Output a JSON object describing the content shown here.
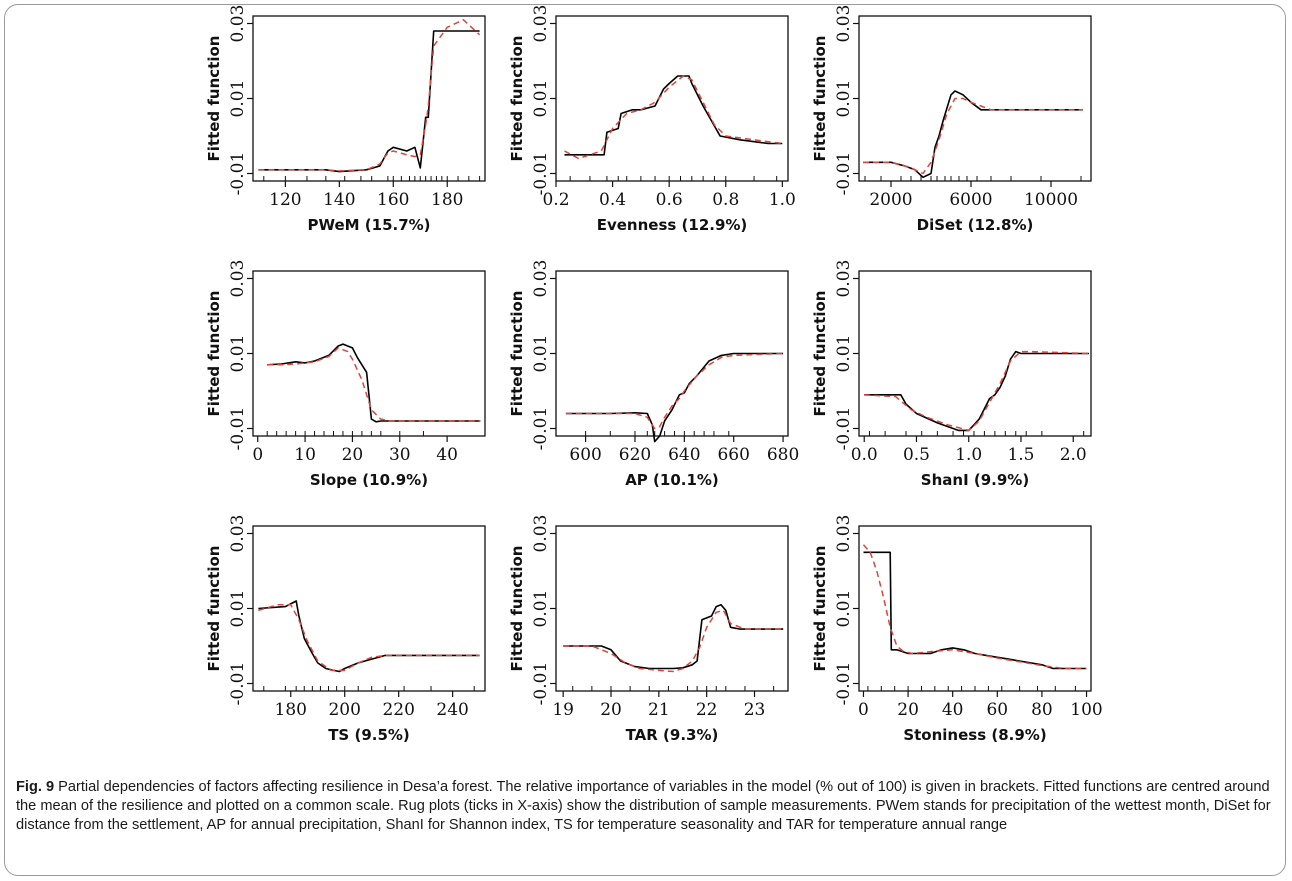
{
  "caption": {
    "label": "Fig. 9",
    "text": "Partial dependencies of factors affecting resilience in Desa’a forest. The relative importance of variables in the model (% out of 100) is given in brackets. Fitted functions are centred around the mean of the resilience and plotted on a common scale. Rug plots (ticks in X-axis) show the distribution of sample measurements. PWem stands for precipitation of the wettest month, DiSet for distance from the settlement, AP for annual precipitation, ShanI for Shannon index, TS for temperature seasonality and TAR for temperature annual range"
  },
  "colors": {
    "fitted": "#000000",
    "smoothed": "#e0443c",
    "axis": "#111111"
  },
  "chart_data": [
    {
      "type": "line",
      "xlabel": "PWeM  (15.7%)",
      "ylabel": "Fitted function",
      "xlim": [
        108,
        194
      ],
      "ylim": [
        -0.012,
        0.032
      ],
      "xticks": [
        120,
        140,
        160,
        180
      ],
      "yticks": [
        -0.01,
        0.01,
        0.03
      ],
      "series": [
        {
          "x": [
            110,
            135,
            140,
            150,
            155,
            158,
            160,
            165,
            168,
            170,
            172,
            173,
            175,
            180,
            192
          ],
          "y": [
            -0.009,
            -0.009,
            -0.0095,
            -0.009,
            -0.008,
            -0.004,
            -0.003,
            -0.004,
            -0.003,
            -0.0085,
            0.005,
            0.005,
            0.028,
            0.028,
            0.028
          ]
        },
        {
          "x": [
            110,
            135,
            140,
            150,
            155,
            158,
            160,
            165,
            168,
            170,
            172,
            173,
            175,
            180,
            186,
            192
          ],
          "y": [
            -0.009,
            -0.009,
            -0.0093,
            -0.009,
            -0.0075,
            -0.0045,
            -0.004,
            -0.005,
            -0.0055,
            -0.005,
            0.003,
            0.008,
            0.024,
            0.029,
            0.031,
            0.027
          ]
        }
      ],
      "rug": [
        112,
        120,
        128,
        135,
        142,
        148,
        152,
        158,
        160,
        163,
        166,
        168,
        170,
        172,
        174,
        176,
        178,
        180,
        184,
        188,
        192
      ]
    },
    {
      "type": "line",
      "xlabel": "Evenness  (12.9%)",
      "ylabel": "Fitted function",
      "xlim": [
        0.2,
        1.02
      ],
      "ylim": [
        -0.012,
        0.032
      ],
      "xticks": [
        0.2,
        0.4,
        0.6,
        0.8,
        1.0
      ],
      "yticks": [
        -0.01,
        0.01,
        0.03
      ],
      "series": [
        {
          "x": [
            0.23,
            0.37,
            0.38,
            0.42,
            0.43,
            0.47,
            0.5,
            0.55,
            0.58,
            0.6,
            0.63,
            0.67,
            0.68,
            0.72,
            0.75,
            0.78,
            0.85,
            0.95,
            1.0
          ],
          "y": [
            -0.005,
            -0.005,
            0.001,
            0.002,
            0.006,
            0.007,
            0.007,
            0.008,
            0.0125,
            0.014,
            0.016,
            0.016,
            0.014,
            0.008,
            0.004,
            0.0,
            -0.001,
            -0.002,
            -0.002
          ]
        },
        {
          "x": [
            0.23,
            0.28,
            0.36,
            0.4,
            0.45,
            0.5,
            0.55,
            0.6,
            0.65,
            0.68,
            0.72,
            0.76,
            0.8,
            0.9,
            1.0
          ],
          "y": [
            -0.004,
            -0.006,
            -0.004,
            0.002,
            0.006,
            0.007,
            0.009,
            0.013,
            0.016,
            0.015,
            0.009,
            0.003,
            0.0,
            -0.001,
            -0.002
          ]
        }
      ],
      "rug": [
        0.25,
        0.32,
        0.38,
        0.42,
        0.45,
        0.5,
        0.55,
        0.6,
        0.64,
        0.68,
        0.72,
        0.76,
        0.8,
        0.9,
        0.98
      ]
    },
    {
      "type": "line",
      "xlabel": "DiSet  (12.8%)",
      "ylabel": "Fitted function",
      "xlim": [
        400,
        12000
      ],
      "ylim": [
        -0.012,
        0.032
      ],
      "xticks": [
        2000,
        6000,
        10000
      ],
      "yticks": [
        -0.01,
        0.01,
        0.03
      ],
      "series": [
        {
          "x": [
            600,
            2000,
            2700,
            3200,
            3600,
            4000,
            4200,
            4400,
            4600,
            5000,
            5200,
            5600,
            6000,
            6500,
            7000,
            7500,
            8000,
            11600
          ],
          "y": [
            -0.007,
            -0.007,
            -0.008,
            -0.009,
            -0.011,
            -0.01,
            -0.003,
            0.0,
            0.004,
            0.011,
            0.012,
            0.011,
            0.009,
            0.007,
            0.007,
            0.007,
            0.007,
            0.007
          ]
        },
        {
          "x": [
            600,
            2000,
            2700,
            3200,
            3600,
            4000,
            4400,
            4800,
            5200,
            5600,
            6000,
            6500,
            7000,
            8000,
            11600
          ],
          "y": [
            -0.007,
            -0.007,
            -0.008,
            -0.009,
            -0.01,
            -0.007,
            -0.001,
            0.006,
            0.01,
            0.01,
            0.009,
            0.008,
            0.007,
            0.007,
            0.007
          ]
        }
      ],
      "rug": [
        700,
        1500,
        2500,
        3000,
        3500,
        4000,
        4300,
        4700,
        5000,
        5400,
        5800,
        6300,
        7000,
        8000,
        9500,
        11500
      ]
    },
    {
      "type": "line",
      "xlabel": "Slope  (10.9%)",
      "ylabel": "Fitted function",
      "xlim": [
        -1,
        48
      ],
      "ylim": [
        -0.012,
        0.032
      ],
      "xticks": [
        0,
        10,
        20,
        30,
        40
      ],
      "yticks": [
        -0.01,
        0.01,
        0.03
      ],
      "series": [
        {
          "x": [
            2,
            5,
            8,
            10,
            12,
            15,
            17,
            18,
            20,
            21,
            22,
            23,
            24,
            25,
            26,
            28,
            30,
            47
          ],
          "y": [
            0.007,
            0.0072,
            0.0078,
            0.0075,
            0.008,
            0.0095,
            0.012,
            0.0125,
            0.0115,
            0.009,
            0.007,
            0.005,
            -0.0075,
            -0.0082,
            -0.008,
            -0.008,
            -0.008,
            -0.008
          ]
        },
        {
          "x": [
            2,
            5,
            8,
            10,
            12,
            15,
            17,
            19,
            20,
            22,
            24,
            26,
            28,
            30,
            47
          ],
          "y": [
            0.007,
            0.007,
            0.0072,
            0.0075,
            0.0078,
            0.0092,
            0.0115,
            0.0105,
            0.0085,
            0.003,
            -0.005,
            -0.0075,
            -0.008,
            -0.008,
            -0.008
          ]
        }
      ],
      "rug": [
        2,
        4,
        6,
        8,
        10,
        12,
        14,
        16,
        18,
        20,
        22,
        24,
        26,
        30,
        35
      ]
    },
    {
      "type": "line",
      "xlabel": "AP  (10.1%)",
      "ylabel": "Fitted function",
      "xlim": [
        588,
        682
      ],
      "ylim": [
        -0.012,
        0.032
      ],
      "xticks": [
        600,
        620,
        640,
        660,
        680
      ],
      "yticks": [
        -0.01,
        0.01,
        0.03
      ],
      "series": [
        {
          "x": [
            592,
            610,
            620,
            625,
            627,
            628,
            630,
            632,
            635,
            638,
            640,
            642,
            645,
            650,
            655,
            660,
            680
          ],
          "y": [
            -0.006,
            -0.006,
            -0.0058,
            -0.006,
            -0.009,
            -0.0135,
            -0.012,
            -0.008,
            -0.005,
            -0.001,
            -0.0005,
            0.002,
            0.004,
            0.008,
            0.0095,
            0.01,
            0.01
          ]
        },
        {
          "x": [
            592,
            610,
            620,
            625,
            628,
            630,
            632,
            635,
            638,
            640,
            645,
            650,
            655,
            660,
            680
          ],
          "y": [
            -0.006,
            -0.006,
            -0.006,
            -0.007,
            -0.01,
            -0.0095,
            -0.007,
            -0.004,
            -0.002,
            0.0,
            0.004,
            0.007,
            0.009,
            0.0095,
            0.01
          ]
        }
      ],
      "rug": [
        600,
        610,
        620,
        625,
        628,
        632,
        636,
        640,
        644,
        648,
        652,
        658
      ]
    },
    {
      "type": "line",
      "xlabel": "ShanI  (9.9%)",
      "ylabel": "Fitted function",
      "xlim": [
        -0.05,
        2.17
      ],
      "ylim": [
        -0.012,
        0.032
      ],
      "xticks": [
        0.0,
        0.5,
        1.0,
        1.5,
        2.0
      ],
      "yticks": [
        -0.01,
        0.01,
        0.03
      ],
      "series": [
        {
          "x": [
            0.0,
            0.35,
            0.4,
            0.5,
            0.7,
            0.9,
            1.0,
            1.05,
            1.1,
            1.2,
            1.25,
            1.3,
            1.35,
            1.4,
            1.45,
            1.5,
            1.6,
            2.15
          ],
          "y": [
            -0.001,
            -0.001,
            -0.0035,
            -0.006,
            -0.0085,
            -0.0105,
            -0.0105,
            -0.009,
            -0.0075,
            -0.002,
            -0.001,
            0.001,
            0.004,
            0.0085,
            0.0105,
            0.01,
            0.01,
            0.01
          ]
        },
        {
          "x": [
            0.0,
            0.3,
            0.45,
            0.6,
            0.8,
            1.0,
            1.1,
            1.2,
            1.3,
            1.4,
            1.5,
            1.6,
            2.15
          ],
          "y": [
            -0.001,
            -0.0015,
            -0.005,
            -0.007,
            -0.009,
            -0.0105,
            -0.008,
            -0.003,
            0.002,
            0.008,
            0.0105,
            0.0105,
            0.01
          ]
        }
      ],
      "rug": [
        0.05,
        0.2,
        0.4,
        0.55,
        0.7,
        0.85,
        0.95,
        1.05,
        1.15,
        1.25,
        1.35,
        1.45,
        1.55,
        1.7,
        2.1
      ]
    },
    {
      "type": "line",
      "xlabel": "TS  (9.5%)",
      "ylabel": "Fitted function",
      "xlim": [
        166,
        252
      ],
      "ylim": [
        -0.012,
        0.032
      ],
      "xticks": [
        180,
        200,
        220,
        240
      ],
      "yticks": [
        -0.01,
        0.01,
        0.03
      ],
      "series": [
        {
          "x": [
            168,
            178,
            182,
            183,
            185,
            188,
            190,
            193,
            196,
            198,
            200,
            205,
            210,
            215,
            250
          ],
          "y": [
            0.01,
            0.0105,
            0.012,
            0.008,
            0.002,
            -0.002,
            -0.0045,
            -0.006,
            -0.0065,
            -0.0068,
            -0.006,
            -0.0045,
            -0.0035,
            -0.0025,
            -0.0025
          ]
        },
        {
          "x": [
            168,
            175,
            180,
            183,
            186,
            190,
            195,
            200,
            205,
            210,
            215,
            250
          ],
          "y": [
            0.0095,
            0.011,
            0.011,
            0.007,
            0.0015,
            -0.004,
            -0.0065,
            -0.0065,
            -0.0045,
            -0.003,
            -0.0025,
            -0.0025
          ]
        }
      ],
      "rug": [
        170,
        178,
        182,
        185,
        188,
        191,
        194,
        197,
        200,
        205,
        210,
        215,
        222,
        232,
        248
      ]
    },
    {
      "type": "line",
      "xlabel": "TAR  (9.3%)",
      "ylabel": "Fitted function",
      "xlim": [
        18.85,
        23.7
      ],
      "ylim": [
        -0.012,
        0.032
      ],
      "xticks": [
        19,
        20,
        21,
        22,
        23
      ],
      "yticks": [
        -0.01,
        0.01,
        0.03
      ],
      "series": [
        {
          "x": [
            19.0,
            19.8,
            20.0,
            20.2,
            20.5,
            20.8,
            21.0,
            21.3,
            21.5,
            21.7,
            21.8,
            21.9,
            22.0,
            22.1,
            22.2,
            22.3,
            22.4,
            22.5,
            22.7,
            23.6
          ],
          "y": [
            0.0,
            0.0,
            -0.001,
            -0.004,
            -0.0055,
            -0.006,
            -0.006,
            -0.006,
            -0.0058,
            -0.005,
            -0.004,
            0.007,
            0.0075,
            0.008,
            0.0105,
            0.011,
            0.0095,
            0.005,
            0.0045,
            0.0045
          ]
        },
        {
          "x": [
            19.0,
            19.6,
            20.0,
            20.3,
            20.6,
            21.0,
            21.3,
            21.5,
            21.7,
            21.85,
            22.0,
            22.2,
            22.35,
            22.5,
            22.8,
            23.6
          ],
          "y": [
            0.0,
            0.0,
            -0.002,
            -0.0045,
            -0.006,
            -0.0065,
            -0.0068,
            -0.006,
            -0.004,
            -0.0005,
            0.005,
            0.009,
            0.0095,
            0.006,
            0.0045,
            0.0045
          ]
        }
      ],
      "rug": [
        19.2,
        19.6,
        20.0,
        20.4,
        20.8,
        21.2,
        21.6,
        21.8,
        22.0,
        22.2,
        22.4,
        22.8,
        23.4
      ]
    },
    {
      "type": "line",
      "xlabel": "Stoniness  (8.9%)",
      "ylabel": "Fitted function",
      "xlim": [
        -2,
        102
      ],
      "ylim": [
        -0.012,
        0.032
      ],
      "xticks": [
        0,
        20,
        40,
        60,
        80,
        100
      ],
      "yticks": [
        -0.01,
        0.01,
        0.03
      ],
      "series": [
        {
          "x": [
            0,
            12,
            12.5,
            15,
            20,
            30,
            35,
            40,
            45,
            50,
            55,
            60,
            65,
            70,
            75,
            80,
            85,
            90,
            100
          ],
          "y": [
            0.025,
            0.025,
            -0.001,
            -0.001,
            -0.002,
            -0.002,
            -0.001,
            -0.0005,
            -0.001,
            -0.002,
            -0.0025,
            -0.003,
            -0.0035,
            -0.004,
            -0.0045,
            -0.005,
            -0.006,
            -0.006,
            -0.006
          ]
        },
        {
          "x": [
            0,
            3,
            6,
            9,
            12,
            15,
            18,
            22,
            30,
            40,
            50,
            60,
            70,
            80,
            90,
            100
          ],
          "y": [
            0.027,
            0.025,
            0.02,
            0.013,
            0.005,
            0.0,
            -0.0015,
            -0.002,
            -0.0015,
            -0.001,
            -0.002,
            -0.0032,
            -0.0042,
            -0.0052,
            -0.006,
            -0.006
          ]
        }
      ],
      "rug": [
        2,
        8,
        14,
        20,
        26,
        32,
        38,
        44,
        50,
        56,
        62,
        70,
        78,
        86,
        95
      ]
    }
  ]
}
